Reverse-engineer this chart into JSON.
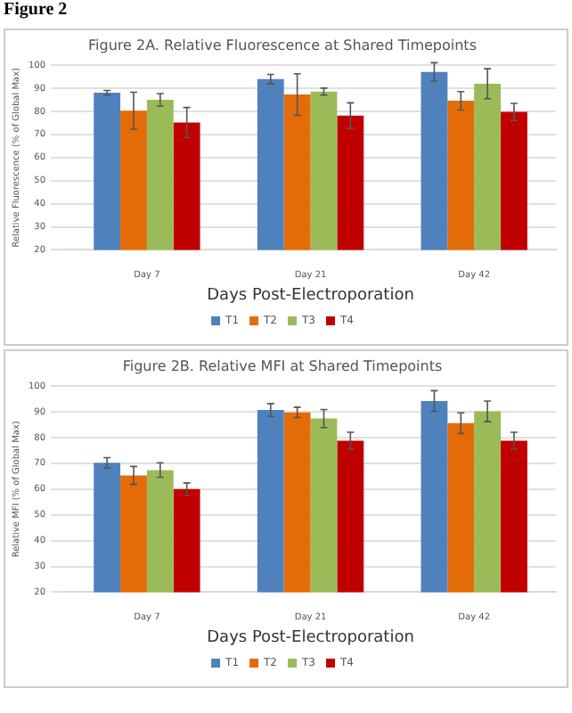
{
  "chart_data": [
    {
      "type": "bar",
      "title": "Figure 2A. Relative Fluorescence at Shared Timepoints",
      "xlabel": "Days Post-Electroporation",
      "ylabel": "Relative Fluorescence (% of Global Max)",
      "annotations": [
        "Figure 2"
      ],
      "categories": [
        "Day 7",
        "Day 21",
        "Day 42"
      ],
      "ylim": [
        20,
        100
      ],
      "yticks": [
        20,
        30,
        40,
        50,
        60,
        70,
        80,
        90,
        100
      ],
      "grid": "y",
      "legend": "bottom",
      "series": [
        {
          "name": "T1",
          "color": "#4f81bd",
          "values": [
            88.1,
            94,
            97.1
          ],
          "errors": [
            1,
            2,
            4
          ]
        },
        {
          "name": "T2",
          "color": "#e36c09",
          "values": [
            80.3,
            87.3,
            84.6
          ],
          "errors": [
            8,
            9,
            4
          ]
        },
        {
          "name": "T3",
          "color": "#9bbb59",
          "values": [
            85,
            88.6,
            92
          ],
          "errors": [
            2.7,
            1.5,
            6.5
          ]
        },
        {
          "name": "T4",
          "color": "#c00000",
          "values": [
            75.2,
            78.2,
            79.8
          ],
          "errors": [
            6.5,
            5.5,
            3.7
          ]
        }
      ]
    },
    {
      "type": "bar",
      "title": "Figure 2B. Relative MFI at Shared Timepoints",
      "xlabel": "Days Post-Electroporation",
      "ylabel": "Relative MFI (% of Global Max)",
      "categories": [
        "Day 7",
        "Day 21",
        "Day 42"
      ],
      "ylim": [
        20,
        100
      ],
      "yticks": [
        20,
        30,
        40,
        50,
        60,
        70,
        80,
        90,
        100
      ],
      "grid": "y",
      "legend": "bottom",
      "series": [
        {
          "name": "T1",
          "color": "#4f81bd",
          "values": [
            70.2,
            90.7,
            94.2
          ],
          "errors": [
            2,
            2.5,
            4
          ]
        },
        {
          "name": "T2",
          "color": "#e36c09",
          "values": [
            65.3,
            89.8,
            85.6
          ],
          "errors": [
            3.5,
            2,
            4
          ]
        },
        {
          "name": "T3",
          "color": "#9bbb59",
          "values": [
            67.4,
            87.4,
            90.2
          ],
          "errors": [
            2.8,
            3.5,
            4
          ]
        },
        {
          "name": "T4",
          "color": "#c00000",
          "values": [
            60,
            78.8,
            78.8
          ],
          "errors": [
            2.4,
            3.3,
            3.3
          ]
        }
      ]
    }
  ]
}
